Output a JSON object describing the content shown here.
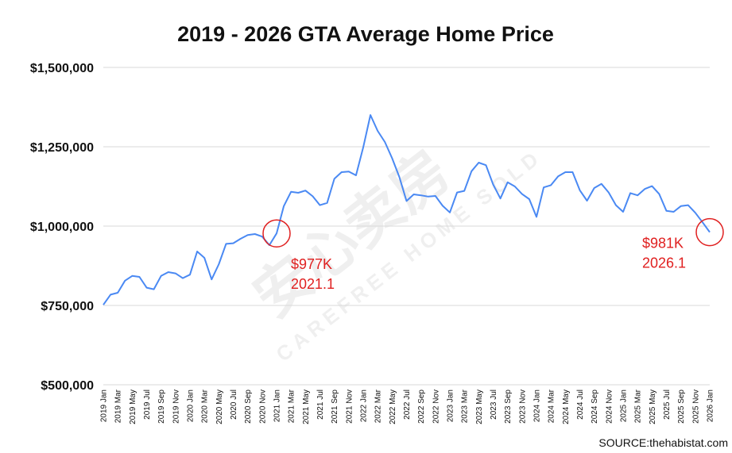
{
  "chart_data": {
    "type": "line",
    "title": "2019 - 2026 GTA Average Home Price",
    "xlabel": "",
    "ylabel": "",
    "ylim": [
      500000,
      1500000
    ],
    "y_ticks": [
      1500000,
      1250000,
      1000000,
      750000,
      500000
    ],
    "y_tick_labels": [
      "$1,500,000",
      "$1,250,000",
      "$1,000,000",
      "$750,000",
      "$500,000"
    ],
    "x_tick_labels": [
      "2019 Jan",
      "2019 Mar",
      "2019 May",
      "2019 Jul",
      "2019 Sep",
      "2019 Nov",
      "2020 Jan",
      "2020 Mar",
      "2020 May",
      "2020 Jul",
      "2020 Sep",
      "2020 Nov",
      "2021 Jan",
      "2021 Mar",
      "2021 May",
      "2021 Jul",
      "2021 Sep",
      "2021 Nov",
      "2022 Jan",
      "2022 Mar",
      "2022 May",
      "2022 Jul",
      "2022 Sep",
      "2022 Nov",
      "2023 Jan",
      "2023 Mar",
      "2023 May",
      "2023 Jul",
      "2023 Sep",
      "2023 Nov",
      "2024 Jan",
      "2024 Mar",
      "2024 May",
      "2024 Jul",
      "2024 Sep",
      "2024 Nov",
      "2025 Jan",
      "2025 Mar",
      "2025 May",
      "2025 Jul",
      "2025 Sep",
      "2025 Nov",
      "2026 Jan"
    ],
    "series": [
      {
        "name": "GTA Average Home Price",
        "color": "#4a89f3",
        "values": [
          752000,
          784000,
          790000,
          828000,
          843000,
          840000,
          806000,
          801000,
          843000,
          855000,
          851000,
          836000,
          847000,
          920000,
          900000,
          832000,
          880000,
          944000,
          946000,
          960000,
          972000,
          975000,
          967000,
          940000,
          977000,
          1063000,
          1108000,
          1105000,
          1112000,
          1094000,
          1066000,
          1073000,
          1149000,
          1170000,
          1172000,
          1160000,
          1248000,
          1350000,
          1300000,
          1265000,
          1214000,
          1155000,
          1079000,
          1100000,
          1097000,
          1093000,
          1095000,
          1064000,
          1043000,
          1106000,
          1111000,
          1173000,
          1200000,
          1192000,
          1131000,
          1087000,
          1138000,
          1125000,
          1101000,
          1085000,
          1029000,
          1122000,
          1129000,
          1157000,
          1170000,
          1170000,
          1113000,
          1080000,
          1120000,
          1133000,
          1106000,
          1066000,
          1045000,
          1104000,
          1097000,
          1117000,
          1126000,
          1101000,
          1048000,
          1045000,
          1063000,
          1066000,
          1042000,
          1012000,
          981000
        ]
      }
    ],
    "annotations": [
      {
        "label_value": "$977K",
        "label_date": "2021.1",
        "point_index": 24
      },
      {
        "label_value": "$981K",
        "label_date": "2026.1",
        "point_index": 84
      }
    ],
    "source": "SOURCE:thehabistat.com",
    "grid": true,
    "legend": "none"
  },
  "watermark": {
    "text": "CAREFREE HOME SOLD",
    "glyph": "安心卖房"
  }
}
